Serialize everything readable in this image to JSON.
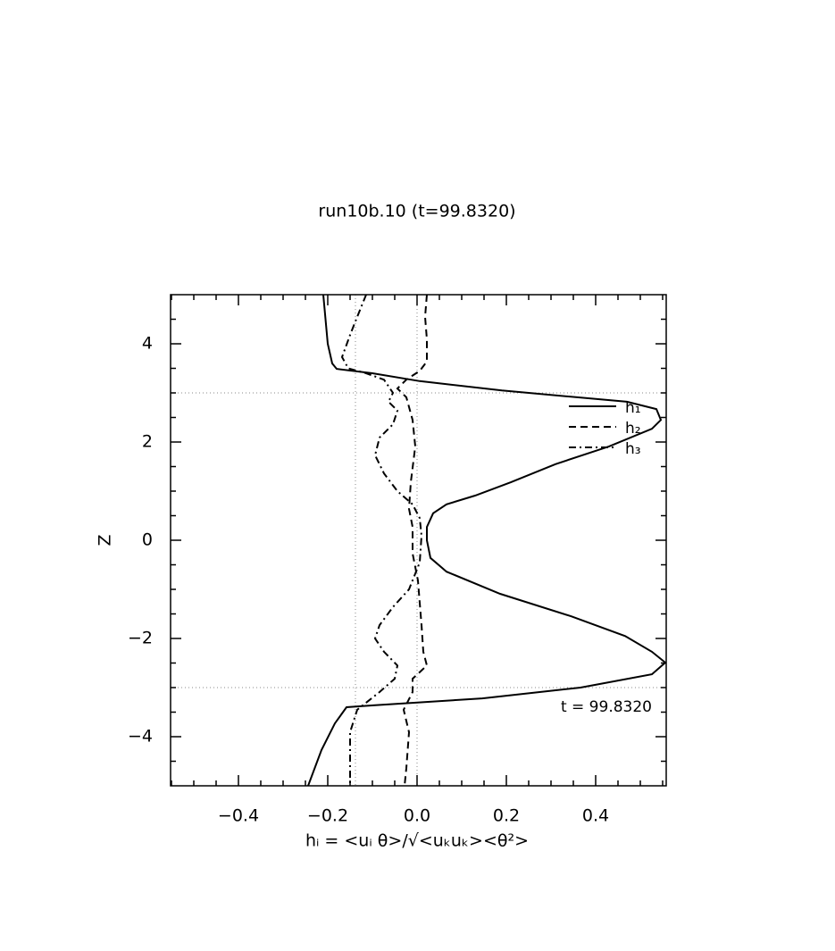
{
  "chart_data": {
    "type": "line",
    "title": "run10b.10 (t=99.8320)",
    "x_label": "hᵢ = <uᵢ θ>/√<uₖuₖ><θ²>",
    "y_label": "Z",
    "annotation": "t = 99.8320",
    "xlim": [
      -0.552,
      0.558
    ],
    "ylim": [
      -5,
      5
    ],
    "xticks": [
      {
        "value": -0.4,
        "label": "−0.4"
      },
      {
        "value": -0.2,
        "label": "−0.2"
      },
      {
        "value": 0,
        "label": "0.0"
      },
      0.2,
      0.4
    ],
    "yticks": [
      {
        "value": -4,
        "label": "−4"
      },
      {
        "value": -2,
        "label": "−2"
      },
      0,
      2,
      4
    ],
    "xminor_ticks": [
      -0.55,
      -0.5,
      -0.45,
      -0.35,
      -0.3,
      -0.25,
      -0.15,
      -0.1,
      -0.05,
      0.05,
      0.1,
      0.15,
      0.25,
      0.3,
      0.35,
      0.45,
      0.5,
      0.55
    ],
    "yminor_ticks": [
      -4.5,
      -3.5,
      -3,
      -2.5,
      -1.5,
      -1,
      -0.5,
      0.5,
      1,
      1.5,
      2.5,
      3,
      3.5,
      4.5
    ],
    "reference_lines": {
      "x": [
        -0.138,
        0
      ],
      "y": [
        3,
        -3
      ]
    },
    "legend": "upper right",
    "series": [
      {
        "name": "h₁",
        "color": "#000000",
        "dash": "none",
        "z": [
          5,
          4.5,
          4,
          3.6,
          3.49,
          3.4,
          3.24,
          3.05,
          2.82,
          2.67,
          2.45,
          2.27,
          1.91,
          1.55,
          1.18,
          0.91,
          0.73,
          0.55,
          0.27,
          0,
          -0.36,
          -0.64,
          -1.09,
          -1.55,
          -1.95,
          -2.27,
          -2.49,
          -2.73,
          -3.0,
          -3.22,
          -3.36,
          -3.4,
          -3.73,
          -4.27,
          -5
        ],
        "values": [
          -0.21,
          -0.205,
          -0.2,
          -0.19,
          -0.18,
          -0.1,
          0.006,
          0.19,
          0.47,
          0.536,
          0.546,
          0.526,
          0.43,
          0.31,
          0.21,
          0.13,
          0.066,
          0.036,
          0.022,
          0.022,
          0.03,
          0.066,
          0.186,
          0.346,
          0.466,
          0.526,
          0.556,
          0.526,
          0.366,
          0.146,
          -0.094,
          -0.158,
          -0.184,
          -0.214,
          -0.244
        ]
      },
      {
        "name": "h₂",
        "color": "#000000",
        "dash": "8 5",
        "z": [
          5,
          4.55,
          4.09,
          3.64,
          3.45,
          3.27,
          3.09,
          2.91,
          2.45,
          1.91,
          1.18,
          0.64,
          0.27,
          -0.27,
          -0.82,
          -1.73,
          -2.27,
          -2.55,
          -2.82,
          -3.09,
          -3.45,
          -3.91,
          -4.64,
          -5
        ],
        "values": [
          0.022,
          0.018,
          0.022,
          0.022,
          0.006,
          -0.024,
          -0.044,
          -0.024,
          -0.01,
          -0.004,
          -0.014,
          -0.018,
          -0.01,
          -0.01,
          0.002,
          0.01,
          0.014,
          0.022,
          -0.01,
          -0.01,
          -0.03,
          -0.018,
          -0.024,
          -0.028
        ]
      },
      {
        "name": "h₃",
        "color": "#000000",
        "dash": "8 4 2 4",
        "z": [
          5,
          4.55,
          4.18,
          3.73,
          3.5,
          3.4,
          3.27,
          3.0,
          2.82,
          2.64,
          2.36,
          2.09,
          1.73,
          1.36,
          1.0,
          0.73,
          0.45,
          0.09,
          -0.45,
          -1.0,
          -1.36,
          -1.73,
          -2.0,
          -2.27,
          -2.55,
          -2.82,
          -3.09,
          -3.45,
          -3.91,
          -5
        ],
        "values": [
          -0.114,
          -0.134,
          -0.15,
          -0.168,
          -0.154,
          -0.114,
          -0.074,
          -0.054,
          -0.064,
          -0.044,
          -0.054,
          -0.084,
          -0.094,
          -0.074,
          -0.044,
          -0.01,
          0.006,
          0.01,
          0.006,
          -0.018,
          -0.054,
          -0.084,
          -0.094,
          -0.074,
          -0.044,
          -0.05,
          -0.084,
          -0.134,
          -0.15,
          -0.15
        ]
      }
    ]
  }
}
